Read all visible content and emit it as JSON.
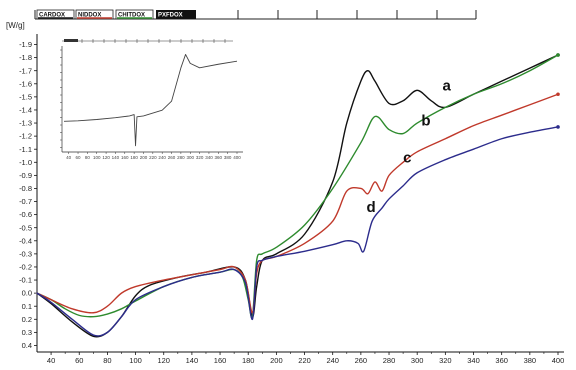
{
  "chart_data": [
    {
      "type": "line",
      "ylabel": "[W/g]",
      "xlabel": "",
      "xlim": [
        30,
        400
      ],
      "ylim": [
        0.45,
        -1.95
      ],
      "y_axis_inverted": true,
      "grid": false,
      "x_ticks": [
        40,
        60,
        80,
        100,
        120,
        140,
        160,
        180,
        200,
        220,
        240,
        260,
        280,
        300,
        320,
        340,
        360,
        380,
        400
      ],
      "y_ticks": [
        -1.9,
        -1.8,
        -1.7,
        -1.6,
        -1.5,
        -1.4,
        -1.3,
        -1.2,
        -1.1,
        -1.0,
        -0.9,
        -0.8,
        -0.7,
        -0.6,
        -0.5,
        -0.4,
        -0.3,
        -0.2,
        -0.1,
        0.0,
        0.1,
        0.2,
        0.3,
        0.4
      ],
      "y_tick_labels": [
        "-1.9",
        "-1.8",
        "-1.7",
        "-1.6",
        "-1.5",
        "-1.4",
        "-1.3",
        "-1.2",
        "-1.1",
        "-1.0",
        "-0.9",
        "-0.8",
        "-0.7",
        "-0.6",
        "-0.5",
        "-0.4",
        "-0.3",
        "-0.2",
        "-0.1",
        "0.0",
        "0.1",
        "0.2",
        "0.3",
        "0.4"
      ],
      "legend": {
        "placement": "top",
        "entries": [
          {
            "label": "CARDOX",
            "color": "#111111"
          },
          {
            "label": "NIDDOX",
            "color": "#c0392b"
          },
          {
            "label": "CHITDOX",
            "color": "#2e8b2e"
          },
          {
            "label": "PXFDOX",
            "color": "#2c2c8c"
          }
        ]
      },
      "series": [
        {
          "annotation": "a",
          "color": "#111111",
          "x": [
            30,
            40,
            55,
            70,
            80,
            90,
            100,
            110,
            130,
            150,
            170,
            178,
            183,
            186,
            190,
            200,
            220,
            240,
            250,
            260,
            265,
            270,
            280,
            290,
            300,
            310,
            320,
            340,
            360,
            380,
            400
          ],
          "y": [
            0.0,
            0.08,
            0.22,
            0.33,
            0.3,
            0.18,
            0.02,
            -0.06,
            -0.12,
            -0.16,
            -0.2,
            -0.1,
            0.18,
            -0.05,
            -0.25,
            -0.3,
            -0.45,
            -0.85,
            -1.3,
            -1.62,
            -1.7,
            -1.62,
            -1.45,
            -1.47,
            -1.55,
            -1.47,
            -1.42,
            -1.52,
            -1.62,
            -1.72,
            -1.82
          ]
        },
        {
          "annotation": "b",
          "color": "#2e8b2e",
          "x": [
            30,
            40,
            50,
            60,
            70,
            80,
            90,
            100,
            120,
            140,
            160,
            170,
            176,
            180,
            183,
            186,
            190,
            200,
            220,
            240,
            260,
            270,
            280,
            290,
            300,
            320,
            340,
            360,
            380,
            400
          ],
          "y": [
            0.0,
            0.05,
            0.12,
            0.17,
            0.18,
            0.16,
            0.12,
            0.06,
            -0.05,
            -0.12,
            -0.16,
            -0.18,
            -0.12,
            0.05,
            0.18,
            -0.25,
            -0.3,
            -0.35,
            -0.52,
            -0.8,
            -1.15,
            -1.35,
            -1.25,
            -1.22,
            -1.3,
            -1.42,
            -1.52,
            -1.6,
            -1.7,
            -1.82
          ]
        },
        {
          "annotation": "c",
          "color": "#c0392b",
          "x": [
            30,
            40,
            55,
            70,
            80,
            90,
            100,
            120,
            140,
            160,
            170,
            178,
            183,
            186,
            190,
            200,
            220,
            240,
            250,
            260,
            265,
            270,
            275,
            280,
            290,
            300,
            320,
            340,
            360,
            380,
            400
          ],
          "y": [
            0.0,
            0.05,
            0.12,
            0.15,
            0.1,
            0.0,
            -0.05,
            -0.1,
            -0.14,
            -0.18,
            -0.2,
            -0.1,
            0.15,
            -0.15,
            -0.25,
            -0.28,
            -0.38,
            -0.55,
            -0.78,
            -0.8,
            -0.76,
            -0.85,
            -0.78,
            -0.9,
            -1.0,
            -1.08,
            -1.18,
            -1.28,
            -1.36,
            -1.44,
            -1.52
          ]
        },
        {
          "annotation": "d",
          "color": "#2c2c8c",
          "x": [
            30,
            40,
            55,
            70,
            80,
            90,
            100,
            120,
            140,
            160,
            170,
            178,
            183,
            186,
            190,
            200,
            220,
            240,
            250,
            258,
            262,
            268,
            275,
            280,
            290,
            300,
            320,
            340,
            360,
            380,
            400
          ],
          "y": [
            0.0,
            0.07,
            0.2,
            0.32,
            0.3,
            0.18,
            0.05,
            -0.05,
            -0.12,
            -0.16,
            -0.18,
            -0.08,
            0.2,
            -0.2,
            -0.25,
            -0.28,
            -0.32,
            -0.37,
            -0.4,
            -0.38,
            -0.32,
            -0.55,
            -0.65,
            -0.72,
            -0.82,
            -0.92,
            -1.02,
            -1.1,
            -1.18,
            -1.23,
            -1.27
          ]
        }
      ]
    },
    {
      "type": "line",
      "placement": "inset-top-left",
      "xlim": [
        30,
        400
      ],
      "ylim": [
        0.6,
        -1.6
      ],
      "x_ticks": [
        40,
        60,
        80,
        100,
        120,
        140,
        160,
        180,
        200,
        220,
        240,
        260,
        280,
        300,
        320,
        340,
        360,
        380,
        400
      ],
      "series": [
        {
          "color": "#444444",
          "x": [
            30,
            60,
            100,
            140,
            170,
            180,
            183,
            186,
            200,
            240,
            260,
            280,
            290,
            300,
            320,
            360,
            400
          ],
          "y": [
            0.0,
            -0.01,
            -0.04,
            -0.08,
            -0.12,
            -0.15,
            0.55,
            -0.1,
            -0.12,
            -0.25,
            -0.45,
            -1.2,
            -1.5,
            -1.3,
            -1.2,
            -1.28,
            -1.35
          ]
        }
      ]
    }
  ]
}
